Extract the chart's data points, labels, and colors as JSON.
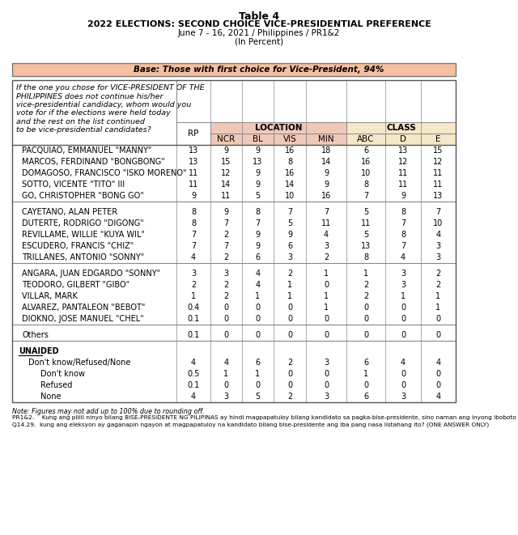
{
  "title_line1": "Table 4",
  "title_line2": "2022 ELECTIONS: SECOND CHOICE VICE-PRESIDENTIAL PREFERENCE",
  "title_line3": "June 7 - 16, 2021 / Philippines / PR1&2",
  "title_line4": "(In Percent)",
  "base_text": "Base: Those with first choice for Vice-President, 94%",
  "question_text": "If the one you chose for VICE-PRESIDENT OF THE\nPHILIPPINES does not continue his/her\nvice-presidential candidacy, whom would you\nvote for if the elections were held today\nand the rest on the list continued\nto be vice-presidential candidates?",
  "col_labels": [
    "RP",
    "NCR",
    "BL",
    "VIS",
    "MIN",
    "ABC",
    "D",
    "E"
  ],
  "rows": [
    {
      "label": "PACQUIAO, EMMANUEL \"MANNY\"",
      "vals": [
        "13",
        "9",
        "9",
        "16",
        "18",
        "6",
        "13",
        "15"
      ],
      "type": "normal"
    },
    {
      "label": "MARCOS, FERDINAND \"BONGBONG\"",
      "vals": [
        "13",
        "15",
        "13",
        "8",
        "14",
        "16",
        "12",
        "12"
      ],
      "type": "normal"
    },
    {
      "label": "DOMAGOSO, FRANCISCO \"ISKO MORENO\"",
      "vals": [
        "11",
        "12",
        "9",
        "16",
        "9",
        "10",
        "11",
        "11"
      ],
      "type": "normal"
    },
    {
      "label": "SOTTO, VICENTE \"TITO\" III",
      "vals": [
        "11",
        "14",
        "9",
        "14",
        "9",
        "8",
        "11",
        "11"
      ],
      "type": "normal"
    },
    {
      "label": "GO, CHRISTOPHER \"BONG GO\"",
      "vals": [
        "9",
        "11",
        "5",
        "10",
        "16",
        "7",
        "9",
        "13"
      ],
      "type": "normal"
    },
    {
      "label": "",
      "vals": [],
      "type": "sep"
    },
    {
      "label": "CAYETANO, ALAN PETER",
      "vals": [
        "8",
        "9",
        "8",
        "7",
        "7",
        "5",
        "8",
        "7"
      ],
      "type": "normal"
    },
    {
      "label": "DUTERTE, RODRIGO \"DIGONG\"",
      "vals": [
        "8",
        "7",
        "7",
        "5",
        "11",
        "11",
        "7",
        "10"
      ],
      "type": "normal"
    },
    {
      "label": "REVILLAME, WILLIE \"KUYA WIL\"",
      "vals": [
        "7",
        "2",
        "9",
        "9",
        "4",
        "5",
        "8",
        "4"
      ],
      "type": "normal"
    },
    {
      "label": "ESCUDERO, FRANCIS \"CHIZ\"",
      "vals": [
        "7",
        "7",
        "9",
        "6",
        "3",
        "13",
        "7",
        "3"
      ],
      "type": "normal"
    },
    {
      "label": "TRILLANES, ANTONIO \"SONNY\"",
      "vals": [
        "4",
        "2",
        "6",
        "3",
        "2",
        "8",
        "4",
        "3"
      ],
      "type": "normal"
    },
    {
      "label": "",
      "vals": [],
      "type": "sep"
    },
    {
      "label": "ANGARA, JUAN EDGARDO \"SONNY\"",
      "vals": [
        "3",
        "3",
        "4",
        "2",
        "1",
        "1",
        "3",
        "2"
      ],
      "type": "normal"
    },
    {
      "label": "TEODORO, GILBERT \"GIBO\"",
      "vals": [
        "2",
        "2",
        "4",
        "1",
        "0",
        "2",
        "3",
        "2"
      ],
      "type": "normal"
    },
    {
      "label": "VILLAR, MARK",
      "vals": [
        "1",
        "2",
        "1",
        "1",
        "1",
        "2",
        "1",
        "1"
      ],
      "type": "normal"
    },
    {
      "label": "ALVAREZ, PANTALEON \"BEBOT\"",
      "vals": [
        "0.4",
        "0",
        "0",
        "0",
        "1",
        "0",
        "0",
        "1"
      ],
      "type": "normal"
    },
    {
      "label": "DIOKNO, JOSE MANUEL \"CHEL\"",
      "vals": [
        "0.1",
        "0",
        "0",
        "0",
        "0",
        "0",
        "0",
        "0"
      ],
      "type": "normal"
    },
    {
      "label": "",
      "vals": [],
      "type": "sep"
    },
    {
      "label": "Others",
      "vals": [
        "0.1",
        "0",
        "0",
        "0",
        "0",
        "0",
        "0",
        "0"
      ],
      "type": "normal"
    },
    {
      "label": "",
      "vals": [],
      "type": "sep"
    },
    {
      "label": "UNAIDED",
      "vals": [],
      "type": "unaided"
    },
    {
      "label": "Don't know/Refused/None",
      "vals": [
        "4",
        "4",
        "6",
        "2",
        "3",
        "6",
        "4",
        "4"
      ],
      "type": "sub1"
    },
    {
      "label": "Don't know",
      "vals": [
        "0.5",
        "1",
        "1",
        "0",
        "0",
        "1",
        "0",
        "0"
      ],
      "type": "sub2"
    },
    {
      "label": "Refused",
      "vals": [
        "0.1",
        "0",
        "0",
        "0",
        "0",
        "0",
        "0",
        "0"
      ],
      "type": "sub2"
    },
    {
      "label": "None",
      "vals": [
        "4",
        "3",
        "5",
        "2",
        "3",
        "6",
        "3",
        "4"
      ],
      "type": "sub2"
    }
  ],
  "note1": "Note: Figures may not add up to 100% due to rounding off.",
  "note2": "PR1&2.    Kung ang pilili ninyo bilang BISE-PRESIDENTE NG PILIPINAS ay hindi magpapatuloy bilang kandidato sa pagka-bise-presidente, sino naman ang inyong iboboto",
  "note3": "Q14.29.  kung ang eleksyon ay gaganapin ngayon at magpapatuloy na kandidato bilang bise-presidente ang iba pang nasa listahang ito? (ONE ANSWER ONLY)",
  "color_location_header": "#f0c8b8",
  "color_class_header": "#f5e8c8",
  "color_base_bg": "#f5c0a0",
  "color_border": "#888888",
  "color_white": "#ffffff"
}
